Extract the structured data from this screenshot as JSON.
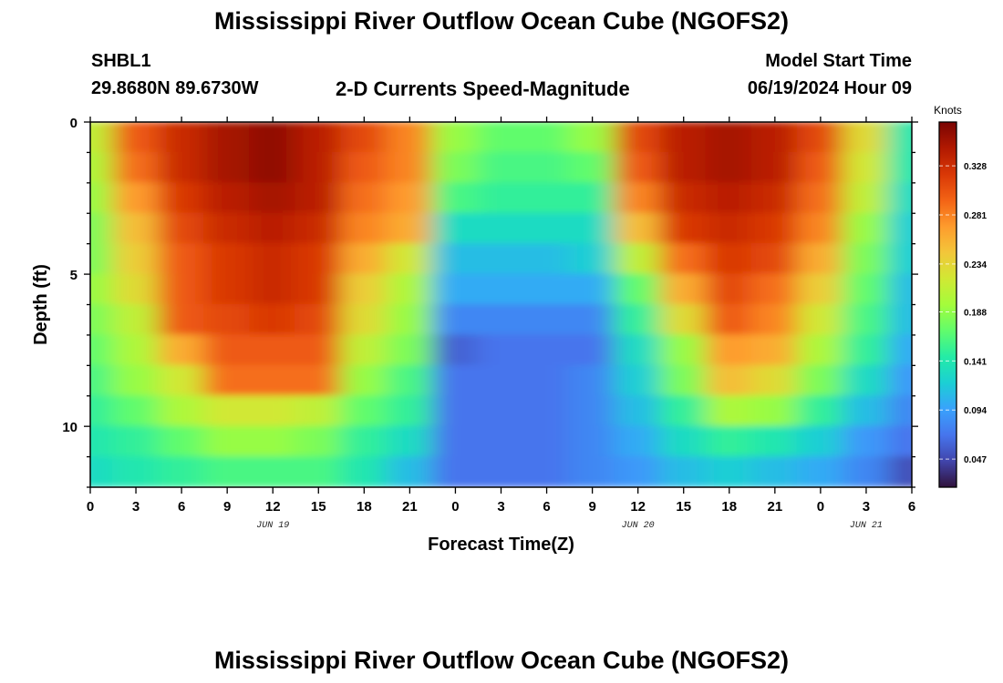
{
  "page": {
    "title": "Mississippi River Outflow Ocean Cube (NGOFS2)",
    "title_repeat": "Mississippi River Outflow Ocean Cube (NGOFS2)",
    "station_id": "SHBL1",
    "station_coords": "29.8680N  89.6730W",
    "subtitle": "2-D Currents Speed-Magnitude",
    "model_start_label": "Model Start Time",
    "model_start_value": "06/19/2024 Hour 09"
  },
  "chart_data": {
    "type": "heatmap",
    "title": "2-D Currents Speed-Magnitude",
    "xlabel": "Forecast Time(Z)",
    "ylabel": "Depth (ft)",
    "xlim_hours": [
      0,
      54
    ],
    "ylim": [
      0,
      12
    ],
    "y_reversed": true,
    "x_tick_labels": [
      "0",
      "3",
      "6",
      "9",
      "12",
      "15",
      "18",
      "21",
      "0",
      "3",
      "6",
      "9",
      "12",
      "15",
      "18",
      "21",
      "0",
      "3",
      "6"
    ],
    "y_tick_values": [
      0,
      5,
      10
    ],
    "date_labels": [
      {
        "hour": 12,
        "text": "JUN 19"
      },
      {
        "hour": 36,
        "text": "JUN 20"
      },
      {
        "hour": 51,
        "text": "JUN 21"
      }
    ],
    "colorbar": {
      "title": "Knots",
      "ticks": [
        0.047,
        0.094,
        0.141,
        0.188,
        0.234,
        0.281,
        0.328
      ],
      "range": [
        0.02,
        0.37
      ],
      "colormap": [
        "#30123b",
        "#4145ab",
        "#4675ed",
        "#39a2fc",
        "#1bcfd4",
        "#24eca6",
        "#61fc6c",
        "#a4fc3b",
        "#d1e834",
        "#f3c63a",
        "#fe9b2d",
        "#f36315",
        "#d93806",
        "#b11901",
        "#7a0403"
      ]
    },
    "depth_levels_ft": [
      0.5,
      1.5,
      2.5,
      3.5,
      4.5,
      5.5,
      6.5,
      7.5,
      8.5,
      9.5,
      10.5,
      11.5
    ],
    "time_hours": [
      0,
      3,
      6,
      9,
      12,
      15,
      18,
      21,
      24,
      27,
      30,
      33,
      36,
      39,
      42,
      45,
      48,
      51,
      54
    ],
    "series": [
      {
        "values": [
          0.21,
          0.3,
          0.33,
          0.35,
          0.36,
          0.34,
          0.31,
          0.28,
          0.19,
          0.17,
          0.17,
          0.19,
          0.31,
          0.34,
          0.35,
          0.34,
          0.31,
          0.23,
          0.14
        ]
      },
      {
        "values": [
          0.2,
          0.29,
          0.33,
          0.35,
          0.36,
          0.34,
          0.3,
          0.28,
          0.18,
          0.16,
          0.16,
          0.17,
          0.3,
          0.34,
          0.35,
          0.34,
          0.3,
          0.22,
          0.14
        ]
      },
      {
        "values": [
          0.19,
          0.27,
          0.32,
          0.34,
          0.35,
          0.34,
          0.29,
          0.27,
          0.16,
          0.15,
          0.15,
          0.15,
          0.28,
          0.33,
          0.34,
          0.33,
          0.29,
          0.21,
          0.13
        ]
      },
      {
        "values": [
          0.18,
          0.25,
          0.31,
          0.33,
          0.34,
          0.33,
          0.28,
          0.26,
          0.13,
          0.13,
          0.13,
          0.13,
          0.25,
          0.32,
          0.33,
          0.32,
          0.28,
          0.19,
          0.12
        ]
      },
      {
        "values": [
          0.18,
          0.24,
          0.3,
          0.32,
          0.33,
          0.32,
          0.26,
          0.22,
          0.11,
          0.11,
          0.11,
          0.12,
          0.21,
          0.29,
          0.32,
          0.31,
          0.26,
          0.18,
          0.12
        ]
      },
      {
        "values": [
          0.19,
          0.23,
          0.3,
          0.32,
          0.33,
          0.32,
          0.24,
          0.2,
          0.1,
          0.1,
          0.1,
          0.1,
          0.17,
          0.26,
          0.31,
          0.29,
          0.24,
          0.17,
          0.11
        ]
      },
      {
        "values": [
          0.18,
          0.21,
          0.3,
          0.31,
          0.32,
          0.31,
          0.23,
          0.19,
          0.08,
          0.08,
          0.08,
          0.08,
          0.15,
          0.23,
          0.3,
          0.28,
          0.22,
          0.16,
          0.11
        ]
      },
      {
        "values": [
          0.17,
          0.2,
          0.26,
          0.3,
          0.3,
          0.3,
          0.21,
          0.18,
          0.06,
          0.07,
          0.07,
          0.07,
          0.13,
          0.19,
          0.27,
          0.26,
          0.2,
          0.15,
          0.1
        ]
      },
      {
        "values": [
          0.16,
          0.19,
          0.22,
          0.29,
          0.29,
          0.29,
          0.19,
          0.16,
          0.07,
          0.07,
          0.07,
          0.08,
          0.12,
          0.18,
          0.25,
          0.23,
          0.18,
          0.13,
          0.09
        ]
      },
      {
        "values": [
          0.15,
          0.17,
          0.2,
          0.22,
          0.22,
          0.21,
          0.17,
          0.15,
          0.07,
          0.07,
          0.07,
          0.08,
          0.11,
          0.15,
          0.2,
          0.19,
          0.15,
          0.11,
          0.08
        ]
      },
      {
        "values": [
          0.14,
          0.15,
          0.17,
          0.19,
          0.19,
          0.18,
          0.15,
          0.13,
          0.07,
          0.07,
          0.07,
          0.08,
          0.1,
          0.13,
          0.15,
          0.14,
          0.12,
          0.09,
          0.07
        ]
      },
      {
        "values": [
          0.13,
          0.14,
          0.15,
          0.16,
          0.16,
          0.16,
          0.14,
          0.11,
          0.07,
          0.07,
          0.07,
          0.08,
          0.09,
          0.11,
          0.12,
          0.11,
          0.1,
          0.08,
          0.05
        ]
      }
    ]
  }
}
